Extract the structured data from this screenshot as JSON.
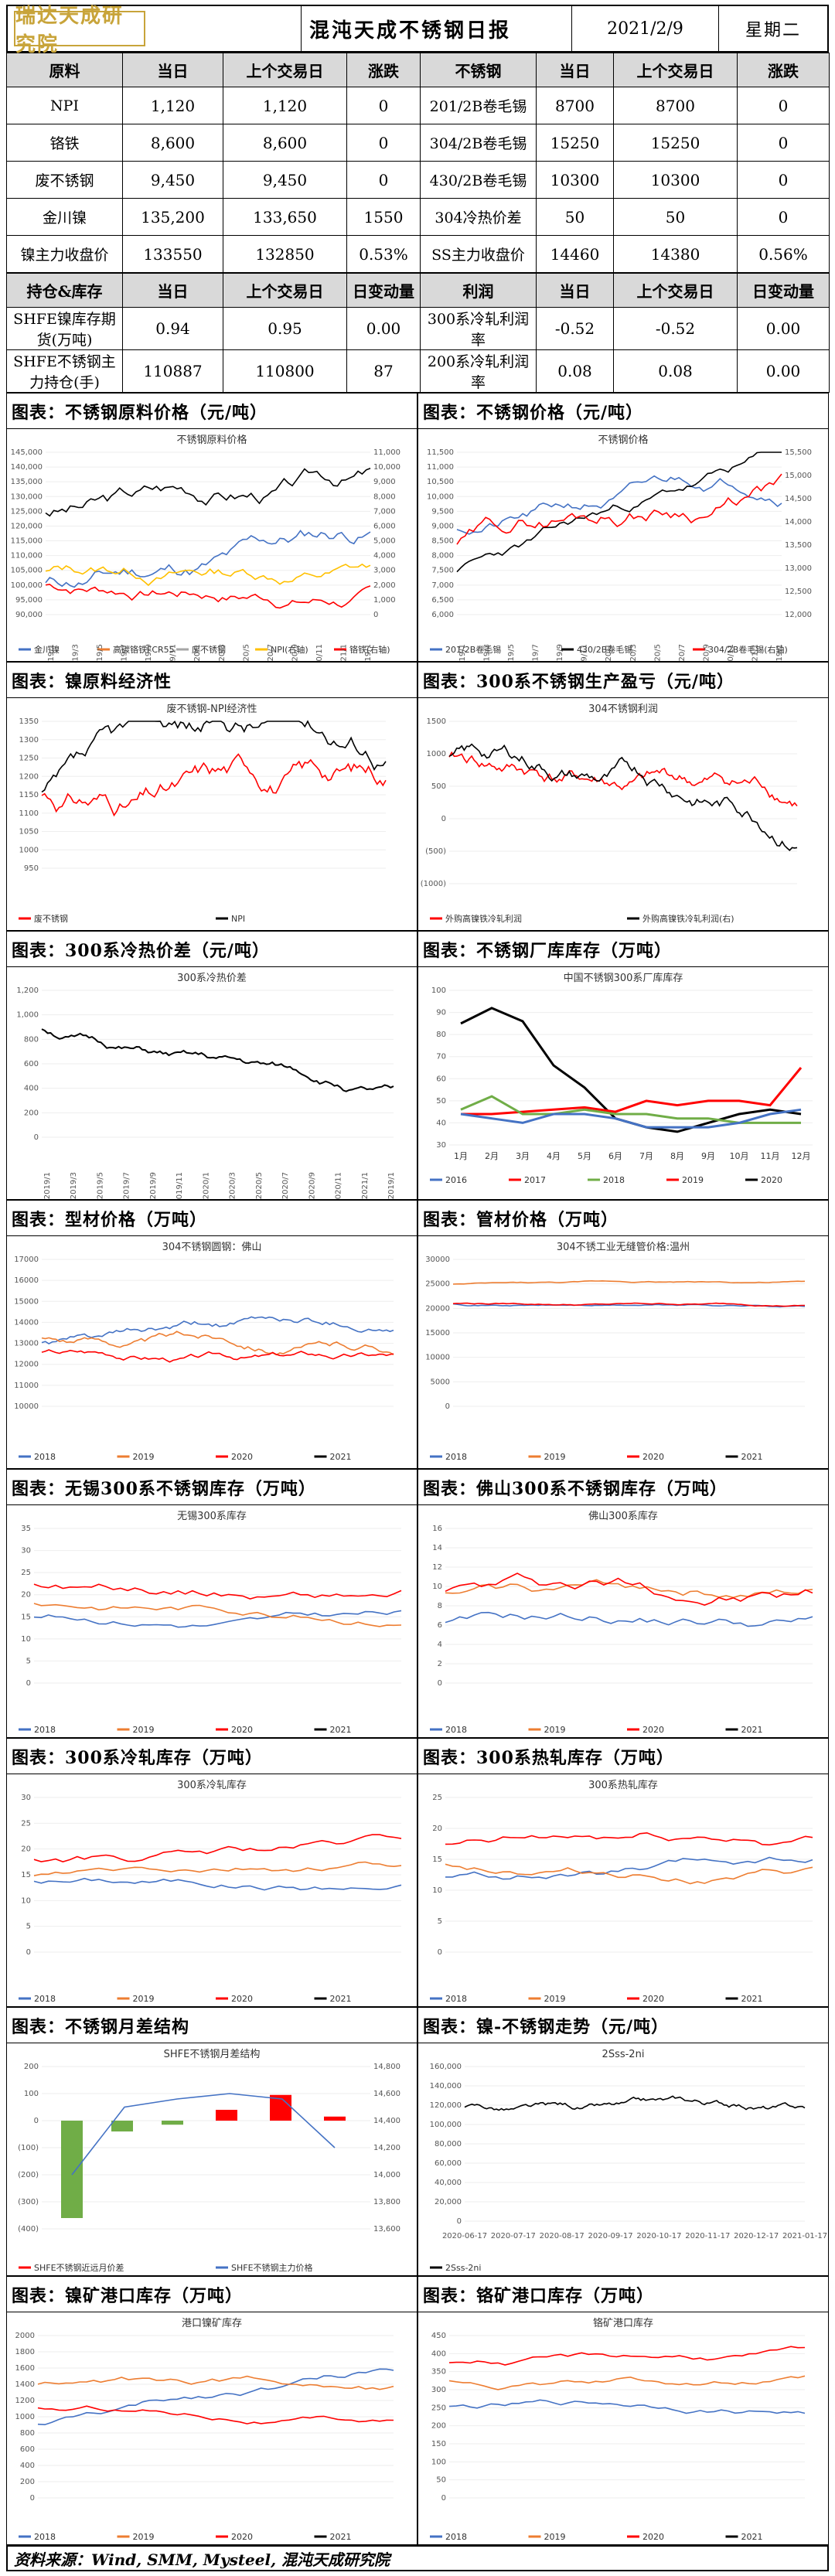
{
  "header": {
    "logo_text": "瑞达天成研究院",
    "title": "混沌天成不锈钢日报",
    "date": "2021/2/9",
    "weekday": "星期二"
  },
  "table1": {
    "headers": [
      "原料",
      "当日",
      "上个交易日",
      "涨跌",
      "不锈钢",
      "当日",
      "上个交易日",
      "涨跌"
    ],
    "rows": [
      [
        "NPI",
        "1,120",
        "1,120",
        "0",
        "201/2B卷毛锡",
        "8700",
        "8700",
        "0"
      ],
      [
        "铬铁",
        "8,600",
        "8,600",
        "0",
        "304/2B卷毛锡",
        "15250",
        "15250",
        "0"
      ],
      [
        "废不锈钢",
        "9,450",
        "9,450",
        "0",
        "430/2B卷毛锡",
        "10300",
        "10300",
        "0"
      ],
      [
        "金川镍",
        "135,200",
        "133,650",
        "1550",
        "304冷热价差",
        "50",
        "50",
        "0"
      ],
      [
        "镍主力收盘价",
        "133550",
        "132850",
        "0.53%",
        "SS主力收盘价",
        "14460",
        "14380",
        "0.56%"
      ]
    ]
  },
  "table2": {
    "headers": [
      "持仓&库存",
      "当日",
      "上个交易日",
      "日变动量",
      "利润",
      "当日",
      "上个交易日",
      "日变动量"
    ],
    "rows": [
      [
        "SHFE镍库存期货(万吨)",
        "0.94",
        "0.95",
        "0.00",
        "300系冷轧利润率",
        "-0.52",
        "-0.52",
        "0.00"
      ],
      [
        "SHFE不锈钢主力持仓(手)",
        "110887",
        "110800",
        "87",
        "200系冷轧利润率",
        "0.08",
        "0.08",
        "0.00"
      ]
    ]
  },
  "sections": [
    {
      "title": "图表：不锈钢原料价格（元/吨）",
      "chart_title": "不锈钢原料价格"
    },
    {
      "title": "图表：不锈钢价格（元/吨）",
      "chart_title": "不锈钢价格"
    },
    {
      "title": "图表：镍原料经济性",
      "chart_title": "废不锈钢-NPI经济性"
    },
    {
      "title": "图表：300系不锈钢生产盈亏（元/吨）",
      "chart_title": "304不锈钢利润"
    },
    {
      "title": "图表：300系冷热价差（元/吨）",
      "chart_title": "300系冷热价差"
    },
    {
      "title": "图表：不锈钢厂库库存（万吨）",
      "chart_title": "中国不锈钢300系厂库库存"
    },
    {
      "title": "图表：型材价格（万吨）",
      "chart_title": "304不锈钢圆钢：佛山"
    },
    {
      "title": "图表：管材价格（万吨）",
      "chart_title": "304不锈工业无缝管价格:温州"
    },
    {
      "title": "图表：无锡300系不锈钢库存（万吨）",
      "chart_title": "无锡300系库存"
    },
    {
      "title": "图表：佛山300系不锈钢库存（万吨）",
      "chart_title": "佛山300系库存"
    },
    {
      "title": "图表：300系冷轧库存（万吨）",
      "chart_title": "300系冷轧库存"
    },
    {
      "title": "图表：300系热轧库存（万吨）",
      "chart_title": "300系热轧库存"
    },
    {
      "title": "图表：不锈钢月差结构",
      "chart_title": "SHFE不锈钢月差结构"
    },
    {
      "title": "图表：镍-不锈钢走势（元/吨）",
      "chart_title": "2Sss-2ni"
    },
    {
      "title": "图表：镍矿港口库存（万吨）",
      "chart_title": "港口镍矿库存"
    },
    {
      "title": "图表：铬矿港口库存（万吨）",
      "chart_title": "铬矿港口库存"
    }
  ],
  "legends": {
    "years5": [
      "2016",
      "2017",
      "2018",
      "2019",
      "2020"
    ],
    "years4": [
      "2018",
      "2019",
      "2020",
      "2021"
    ],
    "months": [
      "1月",
      "2月",
      "3月",
      "4月",
      "5月",
      "6月",
      "7月",
      "8月",
      "9月",
      "10月",
      "11月",
      "12月"
    ],
    "raw": [
      "金川镍",
      "高碳铬铁FCR55",
      "废不锈钢",
      "NPI(右轴)",
      "铬铁(右轴)"
    ],
    "ss": [
      "201/2B卷毛锡",
      "430/2B卷毛锡",
      "304/2B卷毛锡(右轴)"
    ],
    "econ": [
      "废不锈钢",
      "NPI"
    ],
    "profit": [
      "外购高镍铁冷轧利润",
      "外购高镍铁冷轧利润(右)"
    ],
    "spread": [
      "SHFE不锈钢近远月价差",
      "SHFE不锈钢主力价格"
    ],
    "ni_ss": [
      "2Sss-2ni"
    ]
  },
  "colors": {
    "blue": "#4472c4",
    "orange": "#ed7d31",
    "gray": "#a5a5a5",
    "yellow": "#ffc000",
    "red": "#ff0000",
    "green": "#70ad47",
    "black": "#000000",
    "logo": "#c8a43a"
  },
  "footer": "资料来源：Wind, SMM, Mysteel, 混沌天成研究院"
}
